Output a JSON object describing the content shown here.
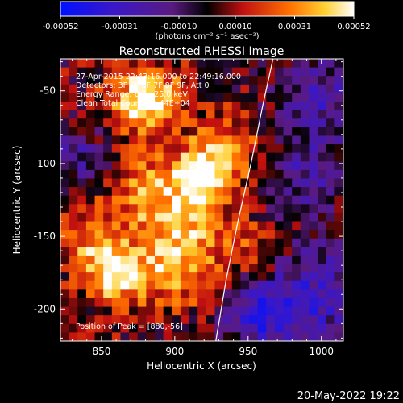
{
  "colorbar": {
    "tick_labels": [
      "-0.00052",
      "-0.00031",
      "-0.00010",
      "0.00010",
      "0.00031",
      "0.00052"
    ],
    "tick_values": [
      -0.00052,
      -0.00031,
      -0.0001,
      0.0001,
      0.00031,
      0.00052
    ],
    "range": [
      -0.00052,
      0.00052
    ],
    "units": "(photons cm⁻² s⁻¹ asec⁻²)"
  },
  "plot": {
    "title": "Reconstructed RHESSI Image",
    "xlabel": "Heliocentric X (arcsec)",
    "ylabel": "Heliocentric Y (arcsec)",
    "x_ticks": [
      850,
      900,
      950,
      1000
    ],
    "y_ticks": [
      -50,
      -100,
      -150,
      -200
    ],
    "xlim": [
      822,
      1015
    ],
    "ylim": [
      -222,
      -28
    ]
  },
  "annotations": {
    "time_range": "27-Apr-2015 22:43:16.000 to 22:49:16.000",
    "detectors": "Detectors: 3F 5F 6F 7F 8F 9F, Att 0",
    "energy": "Energy Range: 6.0 - 25.0 keV",
    "clean": "Clean    Total Counts: 1.44E+04",
    "peak": "Position of Peak = [880,-56]"
  },
  "footer": {
    "date": "20-May-2022 19:22"
  },
  "colors": {
    "background": "#000000",
    "limb": "#ffffff"
  },
  "chart_data": {
    "type": "heatmap",
    "title": "Reconstructed RHESSI Image",
    "xlabel": "Heliocentric X (arcsec)",
    "ylabel": "Heliocentric Y (arcsec)",
    "xlim": [
      822,
      1015
    ],
    "ylim": [
      -222,
      -28
    ],
    "colorscale_range": [
      -0.00052,
      0.00052
    ],
    "peak": [
      880,
      -56
    ],
    "limb_curve": [
      [
        967,
        -28
      ],
      [
        960,
        -60
      ],
      [
        952,
        -100
      ],
      [
        943,
        -140
      ],
      [
        935,
        -180
      ],
      [
        928,
        -222
      ]
    ],
    "grid_cols": 33,
    "grid_rows": 33,
    "seed": 1337,
    "hotspots": [
      {
        "x": 880,
        "y": -56,
        "amp": 1.0,
        "sigma": 16
      },
      {
        "x": 880,
        "y": -120,
        "amp": 0.55,
        "sigma": 18
      },
      {
        "x": 918,
        "y": -110,
        "amp": 0.9,
        "sigma": 14
      },
      {
        "x": 860,
        "y": -175,
        "amp": 0.95,
        "sigma": 14
      },
      {
        "x": 900,
        "y": -175,
        "amp": 0.55,
        "sigma": 18
      },
      {
        "x": 905,
        "y": -145,
        "amp": 0.55,
        "sigma": 16
      },
      {
        "x": 840,
        "y": -150,
        "amp": 0.45,
        "sigma": 16
      },
      {
        "x": 935,
        "y": -90,
        "amp": 0.45,
        "sigma": 18
      },
      {
        "x": 948,
        "y": -160,
        "amp": 0.35,
        "sigma": 16
      },
      {
        "x": 1000,
        "y": -55,
        "amp": -0.55,
        "sigma": 22
      },
      {
        "x": 1000,
        "y": -190,
        "amp": -0.6,
        "sigma": 24
      },
      {
        "x": 960,
        "y": -205,
        "amp": -0.7,
        "sigma": 18
      },
      {
        "x": 835,
        "y": -95,
        "amp": -0.35,
        "sigma": 18
      },
      {
        "x": 990,
        "y": -110,
        "amp": -0.45,
        "sigma": 18
      }
    ]
  }
}
